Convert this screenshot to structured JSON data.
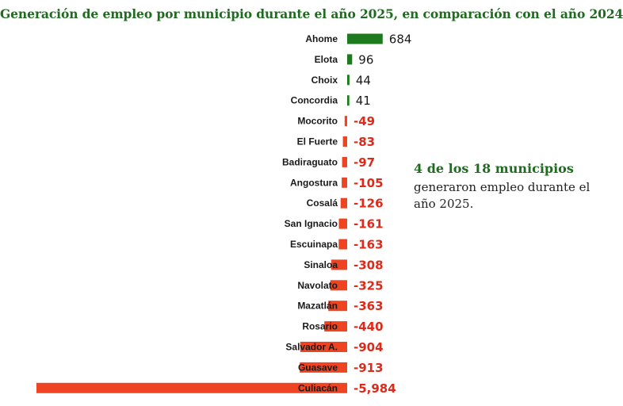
{
  "title": "Generación de empleo por municipio durante el año 2025, en comparación con el año 2024",
  "note": {
    "headline": "4 de los 18 municipios",
    "body": "generaron empleo durante el año 2025."
  },
  "colors": {
    "positive": "#1e7a1e",
    "negative": "#ee4422",
    "title": "#1f6b1f",
    "positive_label": "#1a1a1a",
    "negative_label": "#dd2a1a"
  },
  "chart_data": {
    "type": "bar",
    "orientation": "horizontal",
    "title": "Generación de empleo por municipio durante el año 2025, en comparación con el año 2024",
    "categories": [
      "Ahome",
      "Elota",
      "Choix",
      "Concordia",
      "Mocorito",
      "El Fuerte",
      "Badiraguato",
      "Angostura",
      "Cosalá",
      "San Ignacio",
      "Escuinapa",
      "Sinaloa",
      "Navolato",
      "Mazatlán",
      "Rosario",
      "Salvador A.",
      "Guasave",
      "Culiacán"
    ],
    "values": [
      684,
      96,
      44,
      41,
      -49,
      -83,
      -97,
      -105,
      -126,
      -161,
      -163,
      -308,
      -325,
      -363,
      -440,
      -904,
      -913,
      -5984
    ],
    "value_labels": [
      "684",
      "96",
      "44",
      "41",
      "-49",
      "-83",
      "-97",
      "-105",
      "-126",
      "-161",
      "-163",
      "-308",
      "-325",
      "-363",
      "-440",
      "-904",
      "-913",
      "-5,984"
    ],
    "xlabel": "",
    "ylabel": "",
    "grid": false,
    "legend": "none"
  }
}
